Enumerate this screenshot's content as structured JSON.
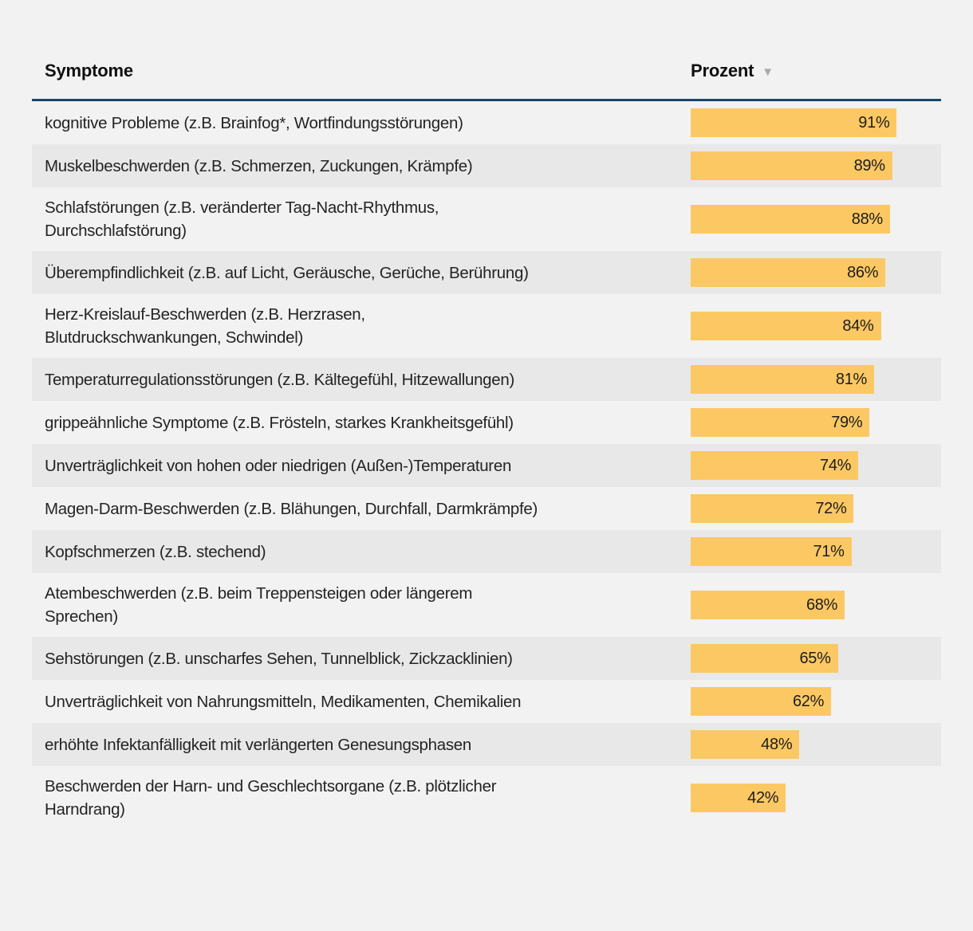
{
  "colors": {
    "background": "#f1f2f1",
    "row_stripe": "#e8e8e8",
    "bar": "#fcc863",
    "header_rule": "#17466b",
    "text": "#242424",
    "sort_icon": "#a9a9a9"
  },
  "table": {
    "columns": [
      {
        "label": "Symptome"
      },
      {
        "label": "Prozent",
        "sorted": "descending"
      }
    ],
    "sort_icon": "▼",
    "rows": [
      {
        "label": "kognitive Probleme (z.B. Brainfog*, Wortfindungsstörungen)",
        "value": 91,
        "value_label": "91%"
      },
      {
        "label": "Muskelbeschwerden (z.B. Schmerzen, Zuckungen, Krämpfe)",
        "value": 89,
        "value_label": "89%"
      },
      {
        "label": "Schlafstörungen (z.B. veränderter Tag-Nacht-Rhythmus,\nDurchschlafstörung)",
        "value": 88,
        "value_label": "88%"
      },
      {
        "label": "Überempfindlichkeit (z.B. auf Licht, Geräusche, Gerüche, Berührung)",
        "value": 86,
        "value_label": "86%"
      },
      {
        "label": "Herz-Kreislauf-Beschwerden (z.B. Herzrasen,\nBlutdruckschwankungen, Schwindel)",
        "value": 84,
        "value_label": "84%"
      },
      {
        "label": "Temperaturregulationsstörungen (z.B. Kältegefühl, Hitzewallungen)",
        "value": 81,
        "value_label": "81%"
      },
      {
        "label": "grippeähnliche Symptome (z.B. Frösteln, starkes Krankheitsgefühl)",
        "value": 79,
        "value_label": "79%"
      },
      {
        "label": "Unverträglichkeit von hohen oder niedrigen (Außen-)Temperaturen",
        "value": 74,
        "value_label": "74%"
      },
      {
        "label": "Magen-Darm-Beschwerden (z.B. Blähungen, Durchfall, Darmkrämpfe)",
        "value": 72,
        "value_label": "72%"
      },
      {
        "label": "Kopfschmerzen (z.B. stechend)",
        "value": 71,
        "value_label": "71%"
      },
      {
        "label": "Atembeschwerden (z.B. beim Treppensteigen oder längerem\nSprechen)",
        "value": 68,
        "value_label": "68%"
      },
      {
        "label": "Sehstörungen (z.B. unscharfes Sehen, Tunnelblick, Zickzacklinien)",
        "value": 65,
        "value_label": "65%"
      },
      {
        "label": "Unverträglichkeit von Nahrungsmitteln, Medikamenten, Chemikalien",
        "value": 62,
        "value_label": "62%"
      },
      {
        "label": "erhöhte Infektanfälligkeit mit verlängerten Genesungsphasen",
        "value": 48,
        "value_label": "48%"
      },
      {
        "label": "Beschwerden der Harn- und Geschlechtsorgane (z.B. plötzlicher\nHarndrang)",
        "value": 42,
        "value_label": "42%"
      }
    ]
  },
  "chart_data": {
    "type": "bar",
    "orientation": "horizontal",
    "title": "",
    "xlabel": "Prozent",
    "ylabel": "Symptome",
    "xlim": [
      0,
      100
    ],
    "unit": "%",
    "grid": false,
    "legend": false,
    "sort": "descending",
    "bar_color": "#fcc863",
    "categories": [
      "kognitive Probleme (z.B. Brainfog*, Wortfindungsstörungen)",
      "Muskelbeschwerden (z.B. Schmerzen, Zuckungen, Krämpfe)",
      "Schlafstörungen (z.B. veränderter Tag-Nacht-Rhythmus, Durchschlafstörung)",
      "Überempfindlichkeit (z.B. auf Licht, Geräusche, Gerüche, Berührung)",
      "Herz-Kreislauf-Beschwerden (z.B. Herzrasen, Blutdruckschwankungen, Schwindel)",
      "Temperaturregulationsstörungen (z.B. Kältegefühl, Hitzewallungen)",
      "grippeähnliche Symptome (z.B. Frösteln, starkes Krankheitsgefühl)",
      "Unverträglichkeit von hohen oder niedrigen (Außen-)Temperaturen",
      "Magen-Darm-Beschwerden (z.B. Blähungen, Durchfall, Darmkrämpfe)",
      "Kopfschmerzen (z.B. stechend)",
      "Atembeschwerden (z.B. beim Treppensteigen oder längerem Sprechen)",
      "Sehstörungen (z.B. unscharfes Sehen, Tunnelblick, Zickzacklinien)",
      "Unverträglichkeit von Nahrungsmitteln, Medikamenten, Chemikalien",
      "erhöhte Infektanfälligkeit mit verlängerten Genesungsphasen",
      "Beschwerden der Harn- und Geschlechtsorgane (z.B. plötzlicher Harndrang)"
    ],
    "values": [
      91,
      89,
      88,
      86,
      84,
      81,
      79,
      74,
      72,
      71,
      68,
      65,
      62,
      48,
      42
    ],
    "value_labels": [
      "91%",
      "89%",
      "88%",
      "86%",
      "84%",
      "81%",
      "79%",
      "74%",
      "72%",
      "71%",
      "68%",
      "65%",
      "62%",
      "48%",
      "42%"
    ]
  }
}
